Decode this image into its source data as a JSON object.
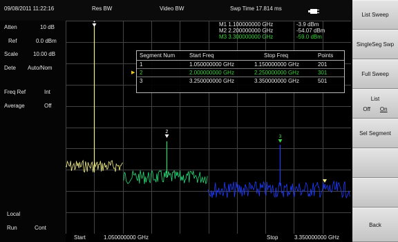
{
  "top_bar": {
    "datetime": "09/08/2011 11:22:16",
    "res_bw": "Res BW",
    "video_bw": "Video BW",
    "swp_time": "Swp Time 17.814 ms",
    "battery_icon": "battery-icon"
  },
  "left_panel": {
    "atten_label": "Atten",
    "atten_value": "10 dB",
    "ref_label": "Ref",
    "ref_value": "0.0 dBm",
    "scale_label": "Scale",
    "scale_value": "10.00 dB",
    "detect_label": "Dete",
    "detect_value": "Auto/Nom",
    "freq_ref_label": "Freq Ref",
    "freq_ref_value": "Int",
    "average_label": "Average",
    "average_value": "Off",
    "local_label": "Local",
    "run_label": "Run",
    "run_value": "Cont"
  },
  "markers": [
    {
      "label": "M1",
      "freq": "1.100000000 GHz",
      "amp": "-3.9  dBm",
      "color": "#e8e8e8"
    },
    {
      "label": "M2",
      "freq": "2.200000000 GHz",
      "amp": "-54.07 dBm",
      "color": "#e8e8e8"
    },
    {
      "label": "M3",
      "freq": "3.300000000 GHz",
      "amp": "-59.0  dBm",
      "color": "#3dd23d"
    }
  ],
  "plot_marker_labels": [
    "1",
    "2",
    "3"
  ],
  "segment_table": {
    "headers": [
      "Segment Num",
      "Start Freq",
      "Stop Freq",
      "Points"
    ],
    "rows": [
      {
        "num": "1",
        "start": "1.050000000 GHz",
        "stop": "1.150000000 GHz",
        "points": "201"
      },
      {
        "num": "2",
        "start": "2.000000000 GHz",
        "stop": "2.250000000 GHz",
        "points": "301"
      },
      {
        "num": "3",
        "start": "3.250000000 GHz",
        "stop": "3.350000000 GHz",
        "points": "501"
      }
    ],
    "selected_color": "#3dd23d"
  },
  "bottom_bar": {
    "start_label": "Start",
    "start_value": "1.050000000 GHz",
    "stop_label": "Stop",
    "stop_value": "3.350000000 GHz"
  },
  "softkeys": {
    "list_sweep": "List Sweep",
    "singleseg_swp": "SingleSeg Swp",
    "full_sweep": "Full Sweep",
    "list": "List",
    "list_off": "Off",
    "list_on": "On",
    "sel_segment": "Sel Segment",
    "back": "Back"
  },
  "trace_colors": {
    "segment1": "#f4f08a",
    "segment2": "#22e07a",
    "segment3": "#1f3cff"
  }
}
